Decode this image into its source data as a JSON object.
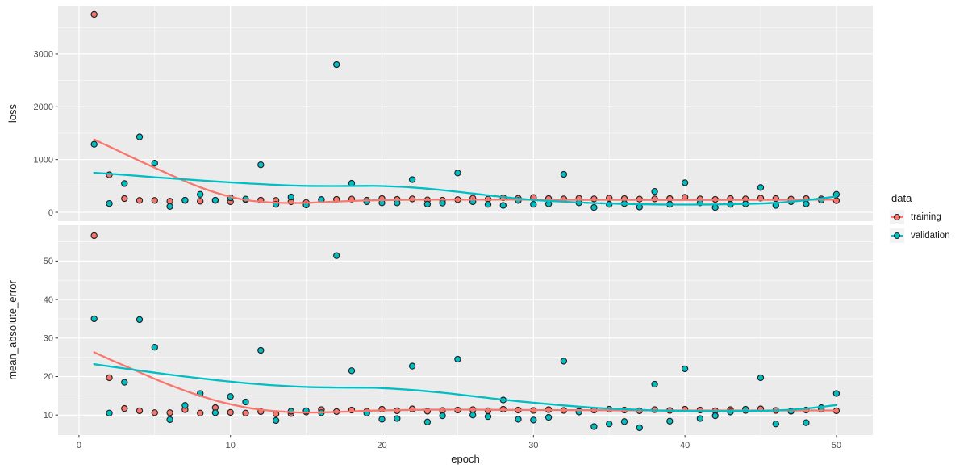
{
  "chart_data": {
    "type": "scatter",
    "description": "Keras training history: loss and mean_absolute_error vs epoch for training and validation data, points with loess smooth curves, two stacked facets, ggplot2 gray theme",
    "xlabel": "epoch",
    "x_ticks": [
      0,
      10,
      20,
      30,
      40,
      50
    ],
    "x_minor_ticks": [
      5,
      15,
      25,
      35,
      45
    ],
    "xlim": [
      -1.38,
      52.4
    ],
    "epochs": [
      1,
      2,
      3,
      4,
      5,
      6,
      7,
      8,
      9,
      10,
      11,
      12,
      13,
      14,
      15,
      16,
      17,
      18,
      19,
      20,
      21,
      22,
      23,
      24,
      25,
      26,
      27,
      28,
      29,
      30,
      31,
      32,
      33,
      34,
      35,
      36,
      37,
      38,
      39,
      40,
      41,
      42,
      43,
      44,
      45,
      46,
      47,
      48,
      49,
      50
    ],
    "legend": {
      "title": "data",
      "position": "right",
      "entries": [
        "training",
        "validation"
      ]
    },
    "colors": {
      "training": "#F8766D",
      "validation": "#00BFC4",
      "panel_bg": "#EBEBEB",
      "grid": "#FFFFFF",
      "tick_mark": "#333333",
      "tick_label": "#4D4D4D",
      "axis_title": "#1A1A1A",
      "legend_key_bg": "#F2F2F2",
      "point_stroke": "#222222"
    },
    "facets": [
      {
        "metric": "loss",
        "ylim": [
          -168,
          3917
        ],
        "y_ticks": [
          0,
          1000,
          2000,
          3000
        ],
        "y_minor_ticks": [
          500,
          1500,
          2500,
          3500
        ],
        "series": [
          {
            "name": "training",
            "values": [
              3750,
              710,
              260,
              225,
              225,
              210,
              225,
              210,
              225,
              200,
              240,
              230,
              225,
              200,
              185,
              240,
              245,
              250,
              230,
              260,
              245,
              255,
              235,
              230,
              240,
              265,
              250,
              275,
              265,
              280,
              260,
              255,
              265,
              255,
              270,
              260,
              250,
              255,
              260,
              285,
              255,
              245,
              260,
              255,
              270,
              260,
              250,
              260,
              255,
              220
            ]
          },
          {
            "name": "validation",
            "values": [
              1290,
              165,
              545,
              1430,
              930,
              110,
              230,
              340,
              230,
              275,
              250,
              900,
              150,
              290,
              140,
              240,
              2800,
              550,
              200,
              180,
              180,
              620,
              155,
              175,
              745,
              200,
              150,
              130,
              225,
              150,
              160,
              720,
              180,
              90,
              150,
              165,
              100,
              395,
              150,
              560,
              180,
              90,
              150,
              160,
              470,
              130,
              200,
              160,
              230,
              340
            ]
          }
        ],
        "smooth": [
          {
            "name": "training",
            "line": [
              [
                1,
                1380
              ],
              [
                2,
                1245
              ],
              [
                3,
                1110
              ],
              [
                4,
                975
              ],
              [
                5,
                845
              ],
              [
                6,
                715
              ],
              [
                7,
                590
              ],
              [
                8,
                475
              ],
              [
                9,
                375
              ],
              [
                10,
                295
              ],
              [
                11,
                235
              ],
              [
                12,
                200
              ],
              [
                13,
                182
              ],
              [
                14,
                176
              ],
              [
                15,
                180
              ],
              [
                16,
                190
              ],
              [
                17,
                203
              ],
              [
                18,
                215
              ],
              [
                19,
                224
              ],
              [
                20,
                230
              ],
              [
                22,
                238
              ],
              [
                24,
                240
              ],
              [
                26,
                240
              ],
              [
                28,
                239
              ],
              [
                30,
                238
              ],
              [
                34,
                236
              ],
              [
                38,
                235
              ],
              [
                42,
                235
              ],
              [
                46,
                236
              ],
              [
                50,
                240
              ]
            ]
          },
          {
            "name": "validation",
            "line": [
              [
                1,
                750
              ],
              [
                3,
                710
              ],
              [
                5,
                665
              ],
              [
                7,
                625
              ],
              [
                9,
                585
              ],
              [
                11,
                550
              ],
              [
                13,
                520
              ],
              [
                15,
                500
              ],
              [
                17,
                498
              ],
              [
                19,
                500
              ],
              [
                20,
                498
              ],
              [
                22,
                470
              ],
              [
                24,
                420
              ],
              [
                26,
                355
              ],
              [
                28,
                290
              ],
              [
                30,
                235
              ],
              [
                32,
                200
              ],
              [
                34,
                175
              ],
              [
                36,
                158
              ],
              [
                38,
                148
              ],
              [
                40,
                145
              ],
              [
                42,
                148
              ],
              [
                44,
                158
              ],
              [
                46,
                180
              ],
              [
                48,
                230
              ],
              [
                50,
                300
              ]
            ]
          }
        ]
      },
      {
        "metric": "mean_absolute_error",
        "ylim": [
          4.8,
          59.3
        ],
        "y_ticks": [
          10,
          20,
          30,
          40,
          50
        ],
        "y_minor_ticks": [
          15,
          25,
          35,
          45,
          55
        ],
        "series": [
          {
            "name": "training",
            "values": [
              56.6,
              19.7,
              11.7,
              11.1,
              10.6,
              10.6,
              11.4,
              10.5,
              11.9,
              10.7,
              10.5,
              10.9,
              10.3,
              10.4,
              10.8,
              11.4,
              10.9,
              11.3,
              11.0,
              11.5,
              11.1,
              11.6,
              11.0,
              11.2,
              11.3,
              11.4,
              11.1,
              11.5,
              11.3,
              11.2,
              11.4,
              11.2,
              11.0,
              11.3,
              11.5,
              11.3,
              11.1,
              11.4,
              11.2,
              11.5,
              11.3,
              11.1,
              11.4,
              11.2,
              11.6,
              11.2,
              11.0,
              11.3,
              11.5,
              11.1
            ]
          },
          {
            "name": "validation",
            "values": [
              35.0,
              10.5,
              18.5,
              34.8,
              27.6,
              8.8,
              12.5,
              15.6,
              10.6,
              14.8,
              13.4,
              26.8,
              8.6,
              11.0,
              11.1,
              10.6,
              51.4,
              21.5,
              10.5,
              8.9,
              9.1,
              22.7,
              8.2,
              9.8,
              24.5,
              10.0,
              9.6,
              13.9,
              8.9,
              8.7,
              9.4,
              24.0,
              10.8,
              7.0,
              7.7,
              8.3,
              6.7,
              18.0,
              8.4,
              22.0,
              9.1,
              9.8,
              10.8,
              11.5,
              19.7,
              7.7,
              11.0,
              8.0,
              11.9,
              15.6
            ]
          }
        ],
        "smooth": [
          {
            "name": "training",
            "line": [
              [
                1,
                26.3
              ],
              [
                2,
                24.5
              ],
              [
                3,
                22.8
              ],
              [
                4,
                21.1
              ],
              [
                5,
                19.4
              ],
              [
                6,
                17.8
              ],
              [
                7,
                16.3
              ],
              [
                8,
                15.0
              ],
              [
                9,
                13.8
              ],
              [
                10,
                12.8
              ],
              [
                11,
                12.0
              ],
              [
                12,
                11.4
              ],
              [
                13,
                11.0
              ],
              [
                14,
                10.75
              ],
              [
                15,
                10.65
              ],
              [
                16,
                10.7
              ],
              [
                17,
                10.8
              ],
              [
                18,
                10.95
              ],
              [
                19,
                11.1
              ],
              [
                20,
                11.2
              ],
              [
                22,
                11.35
              ],
              [
                24,
                11.4
              ],
              [
                26,
                11.4
              ],
              [
                28,
                11.35
              ],
              [
                30,
                11.3
              ],
              [
                34,
                11.25
              ],
              [
                38,
                11.2
              ],
              [
                42,
                11.2
              ],
              [
                46,
                11.2
              ],
              [
                50,
                11.2
              ]
            ]
          },
          {
            "name": "validation",
            "line": [
              [
                1,
                23.2
              ],
              [
                3,
                22.1
              ],
              [
                5,
                21.0
              ],
              [
                7,
                20.0
              ],
              [
                9,
                19.1
              ],
              [
                11,
                18.3
              ],
              [
                13,
                17.7
              ],
              [
                15,
                17.3
              ],
              [
                17,
                17.15
              ],
              [
                19,
                17.1
              ],
              [
                20,
                17.0
              ],
              [
                22,
                16.5
              ],
              [
                24,
                15.8
              ],
              [
                26,
                14.9
              ],
              [
                28,
                14.0
              ],
              [
                30,
                13.2
              ],
              [
                32,
                12.5
              ],
              [
                34,
                11.9
              ],
              [
                36,
                11.5
              ],
              [
                38,
                11.2
              ],
              [
                40,
                11.05
              ],
              [
                42,
                11.0
              ],
              [
                44,
                11.05
              ],
              [
                46,
                11.2
              ],
              [
                48,
                11.7
              ],
              [
                50,
                12.6
              ]
            ]
          }
        ]
      }
    ]
  }
}
